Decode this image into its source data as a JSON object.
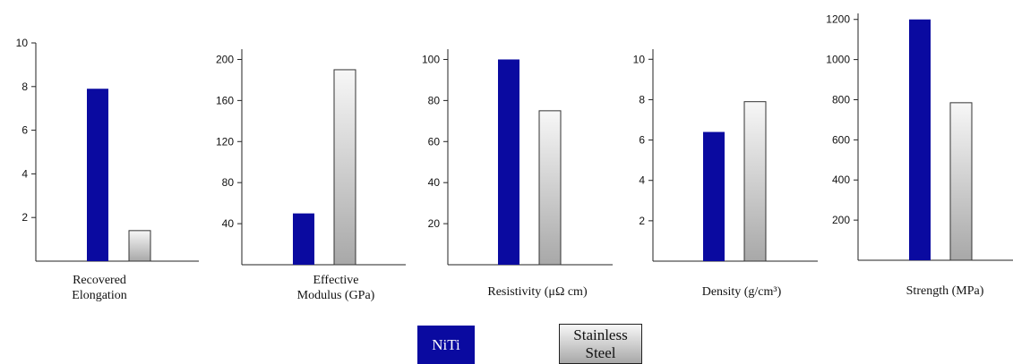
{
  "colors": {
    "niti": "#0a0aa0",
    "stainless_steel_top": "#f7f7f7",
    "stainless_steel_bottom": "#a8a8a8",
    "axis": "#222222"
  },
  "legend": {
    "placement": "bottom-center",
    "niti_label": "NiTi",
    "stainless_steel_label": "Stainless\nSteel"
  },
  "chart_data": [
    {
      "type": "bar",
      "xlabel": "Recovered\nElongation",
      "categories": [
        "NiTi",
        "Stainless Steel"
      ],
      "values": [
        7.9,
        1.4
      ],
      "ylim": [
        0,
        10
      ],
      "yticks": [
        2,
        4,
        6,
        8,
        10
      ],
      "grid": false
    },
    {
      "type": "bar",
      "xlabel": "Effective\nModulus (GPa)",
      "categories": [
        "NiTi",
        "Stainless Steel"
      ],
      "values": [
        50,
        190
      ],
      "ylim": [
        0,
        210
      ],
      "yticks": [
        40,
        80,
        120,
        160,
        200
      ],
      "grid": false
    },
    {
      "type": "bar",
      "xlabel": "Resistivity (μΩ cm)",
      "categories": [
        "NiTi",
        "Stainless Steel"
      ],
      "values": [
        100,
        75
      ],
      "ylim": [
        0,
        105
      ],
      "yticks": [
        20,
        40,
        60,
        80,
        100
      ],
      "grid": false
    },
    {
      "type": "bar",
      "xlabel": "Density (g/cm³)",
      "categories": [
        "NiTi",
        "Stainless Steel"
      ],
      "values": [
        6.4,
        7.9
      ],
      "ylim": [
        0,
        10.5
      ],
      "yticks": [
        2,
        4,
        6,
        8,
        10
      ],
      "grid": false
    },
    {
      "type": "bar",
      "xlabel": "Strength (MPa)",
      "categories": [
        "NiTi",
        "Stainless Steel"
      ],
      "values": [
        1200,
        785
      ],
      "ylim": [
        0,
        1230
      ],
      "yticks": [
        200,
        400,
        600,
        800,
        1000,
        1200
      ],
      "grid": false
    }
  ]
}
